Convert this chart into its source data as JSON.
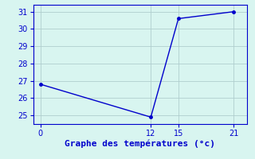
{
  "x": [
    0,
    12,
    15,
    21
  ],
  "y": [
    26.8,
    24.9,
    30.6,
    31.0
  ],
  "line_color": "#0000cc",
  "marker": "o",
  "marker_size": 2.5,
  "line_width": 1.0,
  "background_color": "#d8f5f0",
  "grid_color": "#b0cece",
  "xlabel": "Graphe des températures (°c)",
  "xlabel_color": "#0000cc",
  "xlabel_fontsize": 8,
  "tick_color": "#0000cc",
  "tick_fontsize": 7,
  "ylim": [
    24.5,
    31.4
  ],
  "yticks": [
    25,
    26,
    27,
    28,
    29,
    30,
    31
  ],
  "xticks": [
    0,
    12,
    15,
    21
  ],
  "xlim": [
    -0.8,
    22.5
  ],
  "figsize": [
    3.2,
    2.0
  ],
  "dpi": 100
}
